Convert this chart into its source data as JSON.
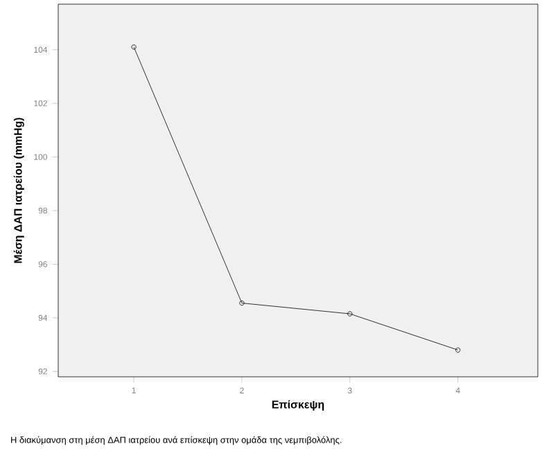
{
  "chart_data": {
    "type": "line",
    "xlabel": "Επίσκεψη",
    "ylabel": "Μέση ΔΑΠ ιατρείου (mmHg)",
    "annotations": [
      "Η διακύμανση στη μέση ΔΑΠ ιατρείου ανά επίσκεψη στην ομάδα της νεμπιβολόλης."
    ],
    "categories": [
      "1",
      "2",
      "3",
      "4"
    ],
    "series": [
      {
        "color": "#000000",
        "values": [
          104.1,
          94.55,
          94.15,
          92.8
        ]
      }
    ],
    "ylim": [
      91.8,
      105.7
    ],
    "yticks": [
      92,
      94,
      96,
      98,
      100,
      102,
      104
    ],
    "marker": "circle",
    "line_style": "solid"
  }
}
